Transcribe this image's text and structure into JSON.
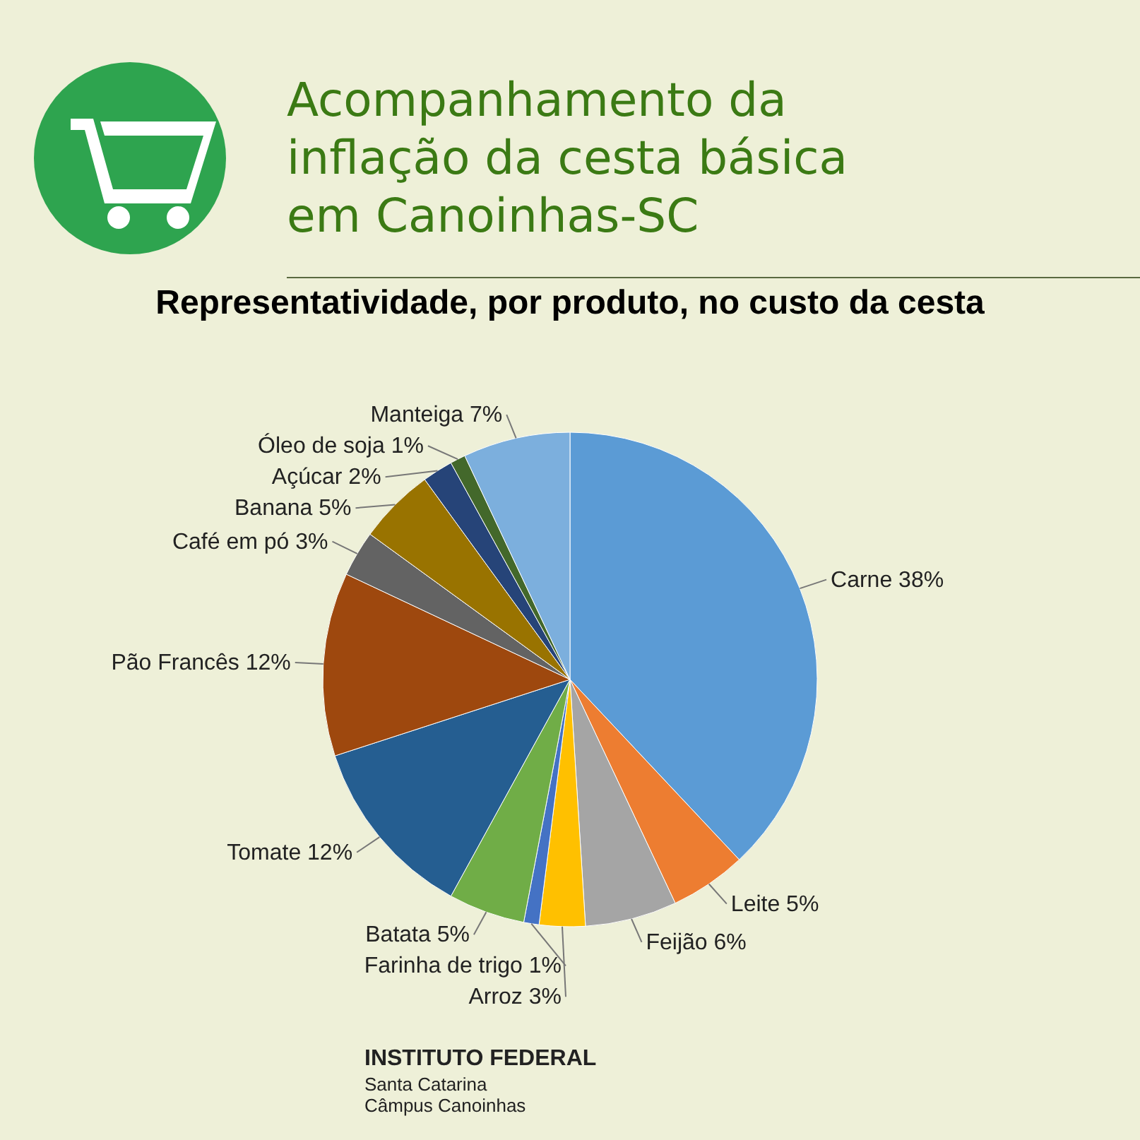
{
  "chart_data": {
    "type": "pie",
    "title": "Acompanhamento da inflação da cesta básica em Canoinhas-SC",
    "subtitle": "Representatividade, por produto, no custo da cesta",
    "categories": [
      "Carne",
      "Leite",
      "Feijão",
      "Arroz",
      "Farinha de trigo",
      "Batata",
      "Tomate",
      "Pão Francês",
      "Café em pó",
      "Banana",
      "Açúcar",
      "Óleo de soja",
      "Manteiga"
    ],
    "values": [
      38,
      5,
      6,
      3,
      1,
      5,
      12,
      12,
      3,
      5,
      2,
      1,
      7
    ],
    "value_labels": [
      "38%",
      "5%",
      "6%",
      "3%",
      "1%",
      "5%",
      "12%",
      "12%",
      "3%",
      "5%",
      "2%",
      "1%",
      "7%"
    ],
    "colors": [
      "#5b9bd5",
      "#ed7d31",
      "#a5a5a5",
      "#ffc000",
      "#4472c4",
      "#70ad47",
      "#255e91",
      "#9e480e",
      "#636363",
      "#997300",
      "#264478",
      "#43682b",
      "#7cafdd"
    ],
    "annotations": [
      "INSTITUTO FEDERAL",
      "Santa Catarina",
      "Câmpus Canoinhas"
    ]
  }
}
